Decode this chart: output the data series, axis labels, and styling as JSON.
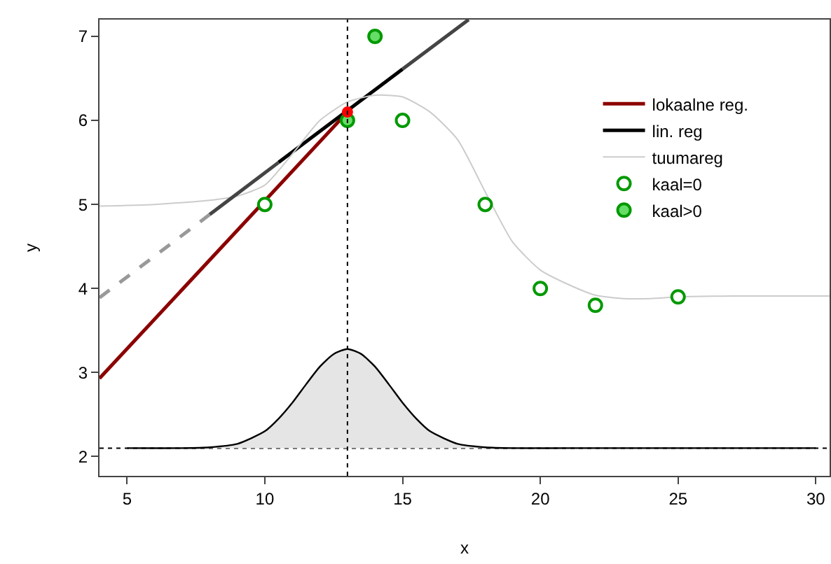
{
  "chart_data": {
    "type": "line",
    "xlabel": "x",
    "ylabel": "y",
    "xlim": [
      4,
      30.5
    ],
    "ylim": [
      1.77,
      7.2
    ],
    "xticks": [
      5,
      10,
      15,
      20,
      25,
      30
    ],
    "yticks": [
      2,
      3,
      4,
      5,
      6,
      7
    ],
    "grid": false,
    "legend": "top right",
    "line_style": "solid",
    "series": [
      {
        "name": "lokaalne reg.",
        "color": "#8b0000",
        "x": [
          4,
          13
        ],
        "values": [
          2.93,
          6.1
        ]
      },
      {
        "name": "lin. reg",
        "color": "#000000",
        "x": [
          10.5,
          15
        ],
        "values": [
          5.5,
          6.61
        ]
      },
      {
        "name": "tuumareg",
        "color": "#cccccc",
        "x": [
          4,
          6,
          8,
          9,
          10,
          11,
          12,
          13,
          14,
          15,
          16,
          17,
          18,
          19,
          20,
          21,
          22,
          23,
          24,
          25,
          27,
          30.5
        ],
        "values": [
          4.98,
          5.0,
          5.05,
          5.1,
          5.23,
          5.6,
          6.0,
          6.22,
          6.3,
          6.28,
          6.1,
          5.77,
          5.15,
          4.55,
          4.22,
          4.05,
          3.92,
          3.88,
          3.88,
          3.9,
          3.91,
          3.91
        ]
      },
      {
        "name": "kaal=0",
        "type": "scatter",
        "color": "#009900",
        "x": [
          10,
          15,
          18,
          20,
          22,
          25
        ],
        "values": [
          5,
          6,
          5,
          4,
          3.8,
          3.9
        ]
      },
      {
        "name": "kaal>0",
        "type": "scatter",
        "color": "#009900",
        "colors": [
          "#66dd66",
          "#66dd66"
        ],
        "x": [
          13,
          14
        ],
        "values": [
          6,
          7
        ]
      },
      {
        "type": "line",
        "color": "#999999",
        "line_style": "dashed",
        "x": [
          4,
          8
        ],
        "values": [
          3.89,
          4.88
        ]
      },
      {
        "type": "line",
        "color": "#444444",
        "x": [
          8,
          10.5
        ],
        "values": [
          4.88,
          5.5
        ]
      },
      {
        "type": "line",
        "color": "#444444",
        "x": [
          15,
          17.4
        ],
        "values": [
          6.61,
          7.2
        ]
      },
      {
        "type": "area",
        "color": "#e5e5e5",
        "x": [
          5,
          7,
          8,
          9,
          10,
          10.5,
          11,
          11.5,
          12,
          12.5,
          13,
          13.5,
          14,
          14.5,
          15,
          15.5,
          16,
          17,
          18,
          19,
          21,
          30
        ],
        "values": [
          2.1,
          2.1,
          2.11,
          2.15,
          2.3,
          2.45,
          2.64,
          2.86,
          3.07,
          3.22,
          3.28,
          3.22,
          3.07,
          2.86,
          2.64,
          2.45,
          2.3,
          2.15,
          2.11,
          2.1,
          2.1,
          2.1
        ]
      },
      {
        "type": "scatter",
        "color": "#ff0000",
        "colors": [
          "#ff0000"
        ],
        "x": [
          13
        ],
        "values": [
          6.1
        ]
      }
    ],
    "ref_lines": [
      {
        "axis": "x",
        "value": 13,
        "line_style": "dotted",
        "color": "#000000"
      },
      {
        "axis": "y",
        "value": 2.1,
        "line_style": "dotted",
        "color": "#000000"
      }
    ]
  }
}
